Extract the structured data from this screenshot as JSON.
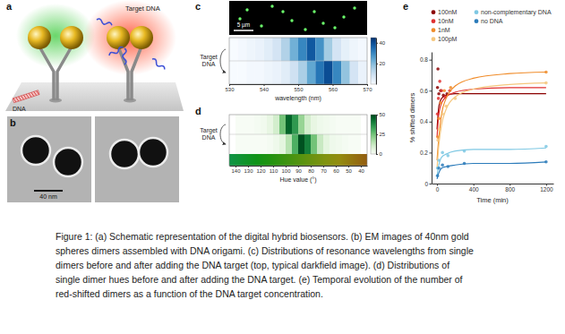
{
  "panel_labels": [
    "a",
    "b",
    "c",
    "d",
    "e"
  ],
  "schematic": {
    "target_label": "Target DNA",
    "dna_label": "DNA"
  },
  "em_images": {
    "scale_label": "40 nm"
  },
  "darkfield_image": {
    "scale_label": "5 µm"
  },
  "chart_data": [
    {
      "type": "heatmap",
      "annotation": "Target DNA",
      "xlabel": "wavelength (nm)",
      "bins": [
        530,
        532.5,
        535,
        537.5,
        540,
        542.5,
        545,
        547.5,
        550,
        552.5,
        555,
        557.5,
        560,
        562.5,
        565,
        567.5,
        570
      ],
      "cells": [
        [
          0,
          1,
          2,
          3,
          5,
          8,
          14,
          22,
          30,
          38,
          28,
          16,
          8,
          4,
          2,
          1
        ],
        [
          0,
          0,
          1,
          1,
          2,
          3,
          5,
          9,
          15,
          24,
          33,
          40,
          30,
          18,
          8,
          3
        ]
      ],
      "xlim": [
        530,
        570
      ],
      "xticks": [
        530,
        540,
        550,
        560,
        570
      ],
      "color_range": [
        0,
        45
      ],
      "color_ticks": [
        20,
        40
      ]
    },
    {
      "type": "heatmap",
      "annotation": "Target DNA",
      "xlabel": "Hue value (°)",
      "bins": [
        40,
        45,
        50,
        55,
        60,
        65,
        70,
        75,
        80,
        85,
        90,
        95,
        100,
        105,
        110,
        115,
        120,
        125,
        130,
        135,
        140
      ],
      "cells": [
        [
          0,
          0,
          0,
          0,
          1,
          2,
          3,
          5,
          10,
          20,
          35,
          45,
          25,
          10,
          5,
          2,
          1,
          0,
          0,
          0
        ],
        [
          0,
          0,
          1,
          2,
          3,
          6,
          12,
          25,
          40,
          48,
          30,
          15,
          6,
          3,
          1,
          0,
          0,
          0,
          0,
          0
        ]
      ],
      "xlim": [
        145,
        35
      ],
      "xticks": [
        140,
        130,
        120,
        110,
        100,
        90,
        80,
        70,
        60,
        50,
        40
      ],
      "color_range": [
        0,
        50
      ],
      "color_ticks": [
        0,
        25,
        50
      ]
    },
    {
      "type": "line",
      "xlabel": "Time (min)",
      "ylabel": "% shifted dimers",
      "xlim": [
        -60,
        1280
      ],
      "xticks": [
        0,
        400,
        800,
        1200
      ],
      "ylim": [
        0,
        0.85
      ],
      "yticks": [
        0,
        0.2,
        0.4,
        0.6,
        0.8
      ],
      "legend": "upper left",
      "series": [
        {
          "name": "100nM",
          "color": "#8b0000",
          "marker": "circle",
          "x": [
            5,
            10,
            20,
            40,
            70,
            110
          ],
          "values": [
            0.62,
            0.74,
            0.58,
            0.6,
            0.57,
            0.58
          ],
          "fit": {
            "x": [
              0,
              20,
              50,
              100,
              200,
              400,
              800,
              1200
            ],
            "values": [
              0.35,
              0.5,
              0.55,
              0.57,
              0.58,
              0.58,
              0.58,
              0.58
            ]
          }
        },
        {
          "name": "10nM",
          "color": "#e03030",
          "marker": "circle",
          "x": [
            5,
            15,
            30,
            50,
            90,
            140
          ],
          "values": [
            0.45,
            0.55,
            0.66,
            0.6,
            0.56,
            0.6
          ],
          "fit": {
            "x": [
              0,
              20,
              50,
              100,
              200,
              400,
              800,
              1200
            ],
            "values": [
              0.3,
              0.45,
              0.52,
              0.56,
              0.59,
              0.61,
              0.62,
              0.62
            ]
          }
        },
        {
          "name": "1nM",
          "color": "#f08c2a",
          "marker": "circle",
          "x": [
            8,
            20,
            40,
            80,
            150,
            1200
          ],
          "values": [
            0.3,
            0.42,
            0.52,
            0.6,
            0.62,
            0.72
          ],
          "fit": {
            "x": [
              0,
              20,
              50,
              100,
              200,
              400,
              800,
              1200
            ],
            "values": [
              0.15,
              0.3,
              0.45,
              0.55,
              0.63,
              0.68,
              0.71,
              0.72
            ]
          }
        },
        {
          "name": "100pM",
          "color": "#f5c77e",
          "marker": "circle",
          "x": [
            10,
            25,
            60,
            100,
            200,
            1200
          ],
          "values": [
            0.28,
            0.35,
            0.45,
            0.5,
            0.55,
            0.65
          ],
          "fit": {
            "x": [
              0,
              20,
              50,
              100,
              200,
              400,
              800,
              1200
            ],
            "values": [
              0.1,
              0.25,
              0.38,
              0.48,
              0.56,
              0.61,
              0.64,
              0.65
            ]
          }
        },
        {
          "name": "non-complementary DNA",
          "color": "#7ec8e3",
          "marker": "circle",
          "x": [
            5,
            20,
            60,
            120,
            300,
            1200
          ],
          "values": [
            0.1,
            0.15,
            0.2,
            0.18,
            0.21,
            0.24
          ],
          "fit": {
            "x": [
              0,
              20,
              50,
              100,
              200,
              400,
              800,
              1200
            ],
            "values": [
              0.05,
              0.12,
              0.17,
              0.19,
              0.21,
              0.22,
              0.22,
              0.23
            ]
          }
        },
        {
          "name": "no DNA",
          "color": "#2b7bba",
          "marker": "circle",
          "x": [
            5,
            20,
            60,
            120,
            300,
            1200
          ],
          "values": [
            0.05,
            0.1,
            0.12,
            0.11,
            0.13,
            0.14
          ],
          "fit": {
            "x": [
              0,
              20,
              50,
              100,
              200,
              400,
              800,
              1200
            ],
            "values": [
              0.03,
              0.07,
              0.1,
              0.11,
              0.12,
              0.13,
              0.13,
              0.14
            ]
          }
        }
      ]
    }
  ],
  "caption": [
    "Figure 1: (a) Schematic representation of the digital hybrid biosensors. (b) EM images of 40nm gold",
    "spheres dimers assembled with DNA origami. (c) Distributions of resonance wavelengths from single",
    "dimers before and after adding the DNA target (top, typical darkfield image). (d) Distributions of",
    "single dimer hues before and after adding the DNA target. (e) Temporal evolution of the number of",
    "red-shifted dimers as a function of the DNA target concentration."
  ]
}
